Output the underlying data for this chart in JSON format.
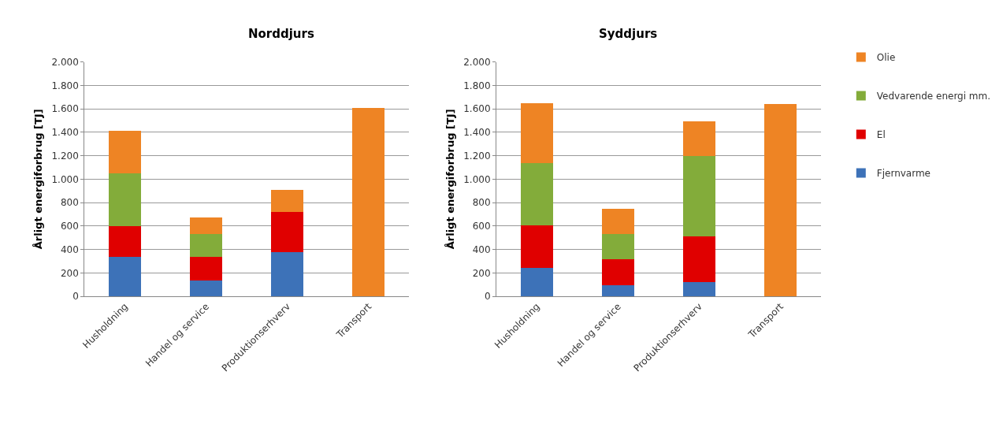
{
  "chart_data": [
    {
      "type": "bar",
      "title": "Norddjurs",
      "ylabel": "Årligt energiforbrug [TJ]",
      "stacked": true,
      "categories": [
        "Husholdning",
        "Handel og service",
        "Produktionserhverv",
        "Transport"
      ],
      "series": [
        {
          "color": "#3d72b8",
          "values": [
            340,
            135,
            380,
            null
          ]
        },
        {
          "color": "#e00000",
          "values": [
            260,
            205,
            340,
            null
          ]
        },
        {
          "color": "#83ac3a",
          "values": [
            450,
            190,
            null,
            null
          ]
        },
        {
          "color": "#ee8424",
          "values": [
            360,
            145,
            185,
            1610
          ]
        }
      ],
      "ylim": [
        0,
        2000
      ],
      "yticks": [
        0,
        200,
        400,
        600,
        800,
        {
          "value": 1000,
          "label": "1.000"
        },
        {
          "value": 1200,
          "label": "1.200"
        },
        {
          "value": 1400,
          "label": "1.400"
        },
        {
          "value": 1600,
          "label": "1.600"
        },
        {
          "value": 1800,
          "label": "1.800"
        },
        {
          "value": 2000,
          "label": "2.000"
        }
      ],
      "grid": "y",
      "legend": false
    },
    {
      "type": "bar",
      "title": "Syddjurs",
      "ylabel": "Årligt energiforbrug [TJ]",
      "stacked": true,
      "categories": [
        "Husholdning",
        "Handel og service",
        "Produktionserhverv",
        "Transport"
      ],
      "series": [
        {
          "name": "Fjernvarme",
          "color": "#3d72b8",
          "values": [
            245,
            95,
            120,
            null
          ]
        },
        {
          "name": "El",
          "color": "#e00000",
          "values": [
            360,
            220,
            390,
            null
          ]
        },
        {
          "name": "Vedvarende energi mm.",
          "color": "#83ac3a",
          "values": [
            535,
            215,
            690,
            null
          ]
        },
        {
          "name": "Olie",
          "color": "#ee8424",
          "values": [
            505,
            215,
            295,
            1640
          ]
        }
      ],
      "ylim": [
        0,
        2000
      ],
      "yticks": [
        0,
        200,
        400,
        600,
        800,
        {
          "value": 1000,
          "label": "1.000"
        },
        {
          "value": 1200,
          "label": "1.200"
        },
        {
          "value": 1400,
          "label": "1.400"
        },
        {
          "value": 1600,
          "label": "1.600"
        },
        {
          "value": 1800,
          "label": "1.800"
        },
        {
          "value": 2000,
          "label": "2.000"
        }
      ],
      "grid": "y",
      "legend": "right"
    }
  ]
}
